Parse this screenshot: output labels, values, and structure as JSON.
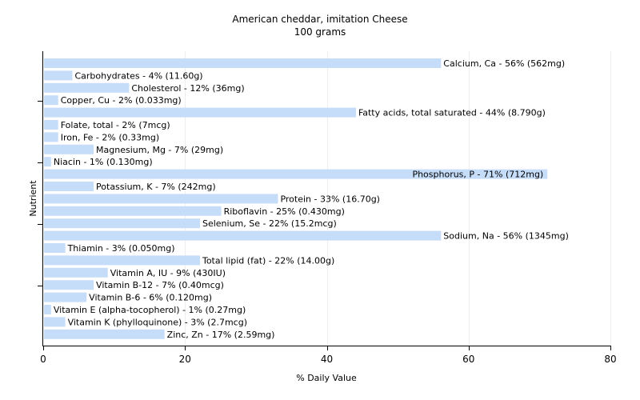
{
  "chart_data": {
    "type": "bar",
    "orientation": "horizontal",
    "title": "American cheddar, imitation Cheese",
    "subtitle": "100 grams",
    "xlabel": "% Daily Value",
    "ylabel": "Nutrient",
    "xlim": [
      0,
      80
    ],
    "xticks": [
      0,
      20,
      40,
      60,
      80
    ],
    "grid": true,
    "bar_color": "#c6ddfa",
    "categories": [
      "Calcium, Ca",
      "Carbohydrates",
      "Cholesterol",
      "Copper, Cu",
      "Fatty acids, total saturated",
      "Folate, total",
      "Iron, Fe",
      "Magnesium, Mg",
      "Niacin",
      "Phosphorus, P",
      "Potassium, K",
      "Protein",
      "Riboflavin",
      "Selenium, Se",
      "Sodium, Na",
      "Thiamin",
      "Total lipid (fat)",
      "Vitamin A, IU",
      "Vitamin B-12",
      "Vitamin B-6",
      "Vitamin E (alpha-tocopherol)",
      "Vitamin K (phylloquinone)",
      "Zinc, Zn"
    ],
    "values": [
      56,
      4,
      12,
      2,
      44,
      2,
      2,
      7,
      1,
      71,
      7,
      33,
      25,
      22,
      56,
      3,
      22,
      9,
      7,
      6,
      1,
      3,
      17
    ],
    "labels": [
      "Calcium, Ca - 56% (562mg)",
      "Carbohydrates - 4% (11.60g)",
      "Cholesterol - 12% (36mg)",
      "Copper, Cu - 2% (0.033mg)",
      "Fatty acids, total saturated - 44% (8.790g)",
      "Folate, total - 2% (7mcg)",
      "Iron, Fe - 2% (0.33mg)",
      "Magnesium, Mg - 7% (29mg)",
      "Niacin - 1% (0.130mg)",
      "Phosphorus, P - 71% (712mg)",
      "Potassium, K - 7% (242mg)",
      "Protein - 33% (16.70g)",
      "Riboflavin - 25% (0.430mg)",
      "Selenium, Se - 22% (15.2mcg)",
      "Sodium, Na - 56% (1345mg)",
      "Thiamin - 3% (0.050mg)",
      "Total lipid (fat) - 22% (14.00g)",
      "Vitamin A, IU - 9% (430IU)",
      "Vitamin B-12 - 7% (0.40mcg)",
      "Vitamin B-6 - 6% (0.120mg)",
      "Vitamin E (alpha-tocopherol) - 1% (0.27mg)",
      "Vitamin K (phylloquinone) - 3% (2.7mcg)",
      "Zinc, Zn - 17% (2.59mg)"
    ]
  }
}
